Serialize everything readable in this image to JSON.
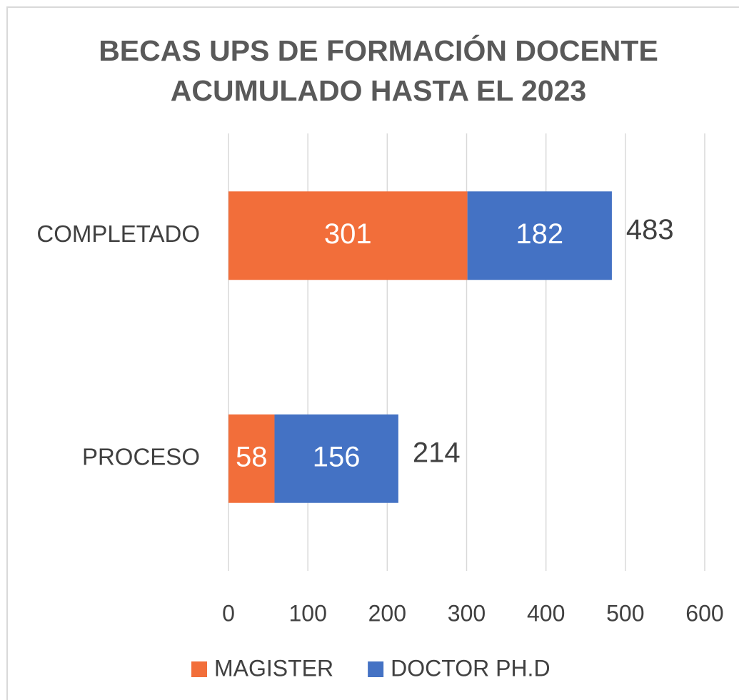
{
  "chart_data": {
    "type": "stacked-barh",
    "title": [
      "BECAS UPS DE FORMACIÓN DOCENTE",
      "ACUMULADO HASTA EL 2023"
    ],
    "categories": [
      "COMPLETADO",
      "PROCESO"
    ],
    "series": [
      {
        "name": "MAGISTER",
        "color": "#f26e3a",
        "values": [
          301,
          58
        ]
      },
      {
        "name": "DOCTOR PH.D",
        "color": "#4472c4",
        "values": [
          182,
          156
        ]
      }
    ],
    "totals": [
      483,
      214
    ],
    "xlim": [
      0,
      600
    ],
    "xticks": [
      0,
      100,
      200,
      300,
      400,
      500,
      600
    ],
    "grid": true,
    "legend": "bottom"
  }
}
